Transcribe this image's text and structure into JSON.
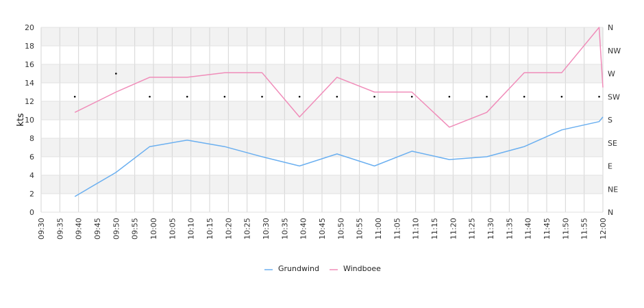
{
  "chart_data": {
    "type": "line",
    "ylabel": "kts",
    "ylim": [
      0,
      20
    ],
    "y_ticks": [
      "0",
      "2",
      "4",
      "6",
      "8",
      "10",
      "12",
      "14",
      "16",
      "18",
      "20"
    ],
    "x_ticks": [
      "09:30",
      "09:35",
      "09:40",
      "09:45",
      "09:50",
      "09:55",
      "10:00",
      "10:05",
      "10:10",
      "10:15",
      "10:20",
      "10:25",
      "10:30",
      "10:35",
      "10:40",
      "10:45",
      "10:50",
      "10:55",
      "11:00",
      "11:05",
      "11:10",
      "11:15",
      "11:20",
      "11:25",
      "11:30",
      "11:35",
      "11:40",
      "11:45",
      "11:50",
      "11:55",
      "12:00"
    ],
    "x_range": [
      "09:30",
      "12:00"
    ],
    "right_axis_ticks": [
      "N",
      "NE",
      "E",
      "SE",
      "S",
      "SW",
      "W",
      "NW",
      "N"
    ],
    "grid": true,
    "legend_position": "bottom",
    "series": [
      {
        "name": "Grundwind",
        "color": "#6aaff0",
        "points": [
          [
            "09:39",
            1.7
          ],
          [
            "09:50",
            4.3
          ],
          [
            "09:59",
            7.1
          ],
          [
            "10:09",
            7.8
          ],
          [
            "10:19",
            7.1
          ],
          [
            "10:29",
            6.0
          ],
          [
            "10:39",
            5.0
          ],
          [
            "10:49",
            6.3
          ],
          [
            "10:59",
            5.0
          ],
          [
            "11:09",
            6.6
          ],
          [
            "11:19",
            5.7
          ],
          [
            "11:29",
            6.0
          ],
          [
            "11:39",
            7.1
          ],
          [
            "11:49",
            8.9
          ],
          [
            "11:59",
            9.8
          ],
          [
            "12:00",
            10.3
          ]
        ]
      },
      {
        "name": "Windboee",
        "color": "#f08cb9",
        "points": [
          [
            "09:39",
            10.8
          ],
          [
            "09:50",
            13.0
          ],
          [
            "09:59",
            14.6
          ],
          [
            "10:09",
            14.6
          ],
          [
            "10:19",
            15.1
          ],
          [
            "10:29",
            15.1
          ],
          [
            "10:39",
            10.3
          ],
          [
            "10:49",
            14.6
          ],
          [
            "10:59",
            13.0
          ],
          [
            "11:09",
            13.0
          ],
          [
            "11:19",
            9.2
          ],
          [
            "11:29",
            10.8
          ],
          [
            "11:39",
            15.1
          ],
          [
            "11:49",
            15.1
          ],
          [
            "11:59",
            20.0
          ],
          [
            "12:00",
            13.5
          ]
        ]
      }
    ],
    "direction_markers": [
      [
        "09:39",
        "SW"
      ],
      [
        "09:50",
        "W"
      ],
      [
        "09:59",
        "SW"
      ],
      [
        "10:09",
        "SW"
      ],
      [
        "10:19",
        "SW"
      ],
      [
        "10:29",
        "SW"
      ],
      [
        "10:39",
        "SW"
      ],
      [
        "10:49",
        "SW"
      ],
      [
        "10:59",
        "SW"
      ],
      [
        "11:09",
        "SW"
      ],
      [
        "11:19",
        "SW"
      ],
      [
        "11:29",
        "SW"
      ],
      [
        "11:39",
        "SW"
      ],
      [
        "11:49",
        "SW"
      ],
      [
        "11:59",
        "SW"
      ]
    ]
  }
}
